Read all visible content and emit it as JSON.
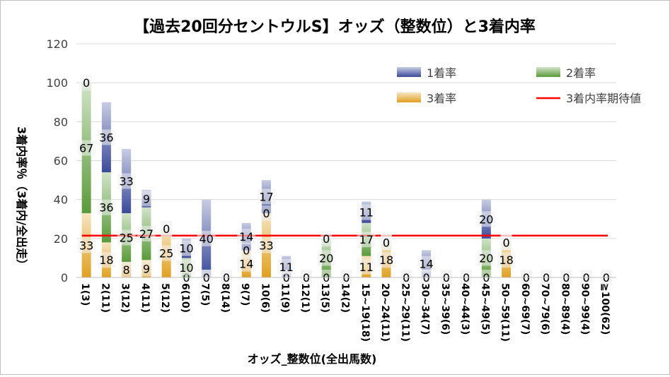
{
  "chart_data": {
    "type": "bar",
    "stacked": true,
    "title": "【過去20回分セントウルS】オッズ（整数位）と3着内率",
    "xlabel": "オッズ_整数位(全出馬数)",
    "ylabel": "3着内率％（3着内/全出走）",
    "ylim": [
      0,
      120
    ],
    "yticks": [
      0,
      20,
      40,
      60,
      80,
      100,
      120
    ],
    "grid": true,
    "legend_position": "top-right",
    "categories": [
      "1(3)",
      "2(11)",
      "3(12)",
      "4(11)",
      "5(12)",
      "6(10)",
      "7(5)",
      "8(14)",
      "9(7)",
      "10(6)",
      "11(9)",
      "12(1)",
      "13(5)",
      "14(2)",
      "15~19(18)",
      "20~24(11)",
      "25~29(11)",
      "30~34(7)",
      "35~39(6)",
      "40~44(3)",
      "45~49(5)",
      "50~59(11)",
      "60~69(7)",
      "70~79(6)",
      "80~89(4)",
      "90~99(4)",
      "≧100(62)"
    ],
    "series": [
      {
        "name": "3着率",
        "color": "#e0a020",
        "values": [
          33,
          18,
          8,
          9,
          25,
          0,
          0,
          0,
          14,
          33,
          0,
          0,
          0,
          0,
          11,
          18,
          0,
          0,
          0,
          0,
          0,
          18,
          0,
          0,
          0,
          0,
          0
        ]
      },
      {
        "name": "2着率",
        "color": "#5a9a3a",
        "values": [
          67,
          36,
          25,
          27,
          0,
          10,
          0,
          0,
          0,
          0,
          0,
          0,
          20,
          0,
          17,
          0,
          0,
          0,
          0,
          0,
          20,
          0,
          0,
          0,
          0,
          0,
          0
        ]
      },
      {
        "name": "1着率",
        "color": "#3b4a9a",
        "values": [
          0,
          36,
          33,
          9,
          0,
          10,
          40,
          0,
          14,
          17,
          11,
          0,
          0,
          0,
          11,
          0,
          0,
          14,
          0,
          0,
          20,
          0,
          0,
          0,
          0,
          0,
          0
        ]
      }
    ],
    "reference_line": {
      "name": "3着内率期待値",
      "color": "#ff0000",
      "value": 21.5
    },
    "legend": [
      "1着率",
      "2着率",
      "3着率",
      "3着内率期待値"
    ]
  }
}
